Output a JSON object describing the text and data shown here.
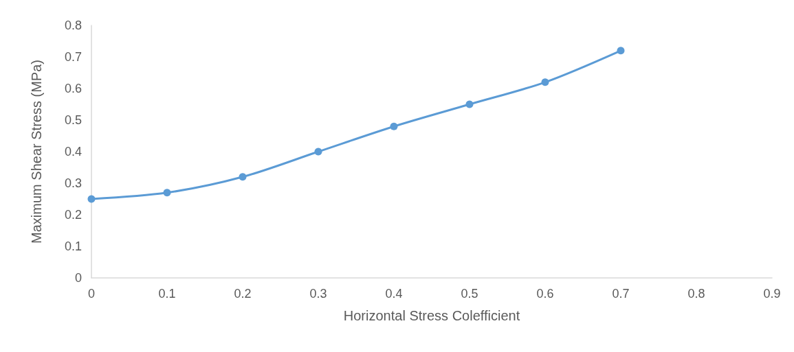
{
  "chart_data": {
    "type": "line",
    "xlabel": "Horizontal Stress Colefficient",
    "ylabel": "Maximum Shear Stress (MPa)",
    "x": [
      0,
      0.1,
      0.2,
      0.3,
      0.4,
      0.5,
      0.6,
      0.7
    ],
    "series": [
      {
        "color": "#5b9bd5",
        "values": [
          0.25,
          0.27,
          0.32,
          0.4,
          0.48,
          0.55,
          0.62,
          0.72
        ]
      }
    ],
    "xlim": [
      0,
      0.9
    ],
    "xticks": [
      0,
      0.1,
      0.2,
      0.3,
      0.4,
      0.5,
      0.6,
      0.7,
      0.8,
      0.9
    ],
    "ylim": [
      0,
      0.8
    ],
    "yticks": [
      0,
      0.1,
      0.2,
      0.3,
      0.4,
      0.5,
      0.6,
      0.7,
      0.8
    ],
    "grid": false,
    "marker": "circle",
    "line_style": "solid"
  }
}
